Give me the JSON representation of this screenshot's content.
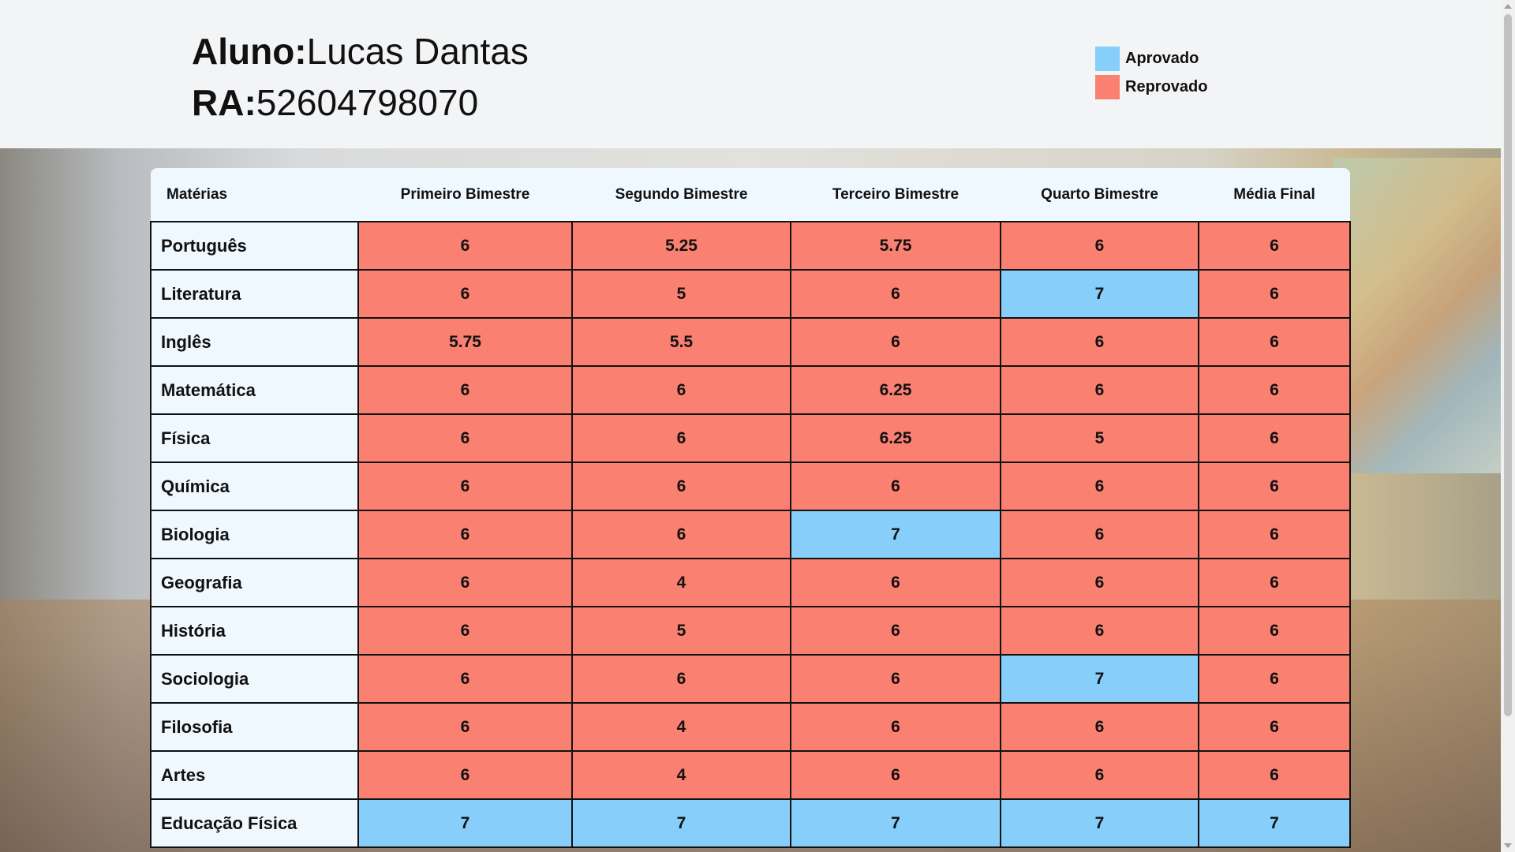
{
  "student": {
    "name_label": "Aluno:",
    "name": "Lucas Dantas",
    "ra_label": "RA:",
    "ra": "52604798070"
  },
  "legend": {
    "approved": "Aprovado",
    "failed": "Reprovado"
  },
  "colors": {
    "approved": "#87cefa",
    "failed": "#fa8072"
  },
  "table": {
    "headers": [
      "Matérias",
      "Primeiro Bimestre",
      "Segundo Bimestre",
      "Terceiro Bimestre",
      "Quarto Bimestre",
      "Média Final"
    ],
    "rows": [
      {
        "subject": "Português",
        "grades": [
          "6",
          "5.25",
          "5.75",
          "6",
          "6"
        ],
        "status": [
          "r",
          "r",
          "r",
          "r",
          "r"
        ]
      },
      {
        "subject": "Literatura",
        "grades": [
          "6",
          "5",
          "6",
          "7",
          "6"
        ],
        "status": [
          "r",
          "r",
          "r",
          "a",
          "r"
        ]
      },
      {
        "subject": "Inglês",
        "grades": [
          "5.75",
          "5.5",
          "6",
          "6",
          "6"
        ],
        "status": [
          "r",
          "r",
          "r",
          "r",
          "r"
        ]
      },
      {
        "subject": "Matemática",
        "grades": [
          "6",
          "6",
          "6.25",
          "6",
          "6"
        ],
        "status": [
          "r",
          "r",
          "r",
          "r",
          "r"
        ]
      },
      {
        "subject": "Física",
        "grades": [
          "6",
          "6",
          "6.25",
          "5",
          "6"
        ],
        "status": [
          "r",
          "r",
          "r",
          "r",
          "r"
        ]
      },
      {
        "subject": "Química",
        "grades": [
          "6",
          "6",
          "6",
          "6",
          "6"
        ],
        "status": [
          "r",
          "r",
          "r",
          "r",
          "r"
        ]
      },
      {
        "subject": "Biologia",
        "grades": [
          "6",
          "6",
          "7",
          "6",
          "6"
        ],
        "status": [
          "r",
          "r",
          "a",
          "r",
          "r"
        ]
      },
      {
        "subject": "Geografia",
        "grades": [
          "6",
          "4",
          "6",
          "6",
          "6"
        ],
        "status": [
          "r",
          "r",
          "r",
          "r",
          "r"
        ]
      },
      {
        "subject": "História",
        "grades": [
          "6",
          "5",
          "6",
          "6",
          "6"
        ],
        "status": [
          "r",
          "r",
          "r",
          "r",
          "r"
        ]
      },
      {
        "subject": "Sociologia",
        "grades": [
          "6",
          "6",
          "6",
          "7",
          "6"
        ],
        "status": [
          "r",
          "r",
          "r",
          "a",
          "r"
        ]
      },
      {
        "subject": "Filosofia",
        "grades": [
          "6",
          "4",
          "6",
          "6",
          "6"
        ],
        "status": [
          "r",
          "r",
          "r",
          "r",
          "r"
        ]
      },
      {
        "subject": "Artes",
        "grades": [
          "6",
          "4",
          "6",
          "6",
          "6"
        ],
        "status": [
          "r",
          "r",
          "r",
          "r",
          "r"
        ]
      },
      {
        "subject": "Educação Física",
        "grades": [
          "7",
          "7",
          "7",
          "7",
          "7"
        ],
        "status": [
          "a",
          "a",
          "a",
          "a",
          "a"
        ]
      }
    ]
  }
}
